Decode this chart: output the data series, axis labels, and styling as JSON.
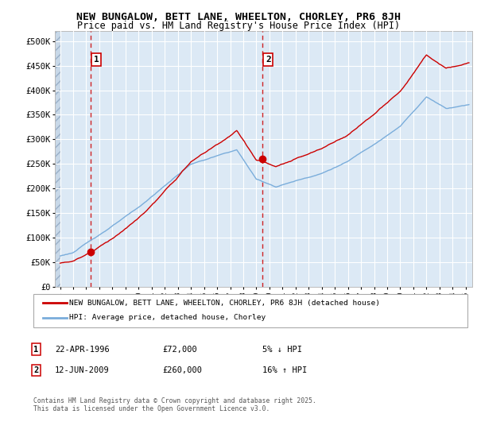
{
  "title": "NEW BUNGALOW, BETT LANE, WHEELTON, CHORLEY, PR6 8JH",
  "subtitle": "Price paid vs. HM Land Registry's House Price Index (HPI)",
  "legend_line1": "NEW BUNGALOW, BETT LANE, WHEELTON, CHORLEY, PR6 8JH (detached house)",
  "legend_line2": "HPI: Average price, detached house, Chorley",
  "ann1_date": "22-APR-1996",
  "ann1_price": "£72,000",
  "ann1_hpi": "5% ↓ HPI",
  "ann1_x": 1996.31,
  "ann1_y": 72000,
  "ann2_date": "12-JUN-2009",
  "ann2_price": "£260,000",
  "ann2_hpi": "16% ↑ HPI",
  "ann2_x": 2009.45,
  "ann2_y": 260000,
  "price_line_color": "#cc0000",
  "hpi_line_color": "#7aaddb",
  "dot_color": "#cc0000",
  "vline_color": "#cc0000",
  "bg_color": "#dce9f5",
  "grid_color": "#ffffff",
  "ylim": [
    0,
    520000
  ],
  "xlim_start": 1993.6,
  "xlim_end": 2025.5,
  "yticks": [
    0,
    50000,
    100000,
    150000,
    200000,
    250000,
    300000,
    350000,
    400000,
    450000,
    500000
  ],
  "xticks": [
    1994,
    1995,
    1996,
    1997,
    1998,
    1999,
    2000,
    2001,
    2002,
    2003,
    2004,
    2005,
    2006,
    2007,
    2008,
    2009,
    2010,
    2011,
    2012,
    2013,
    2014,
    2015,
    2016,
    2017,
    2018,
    2019,
    2020,
    2021,
    2022,
    2023,
    2024,
    2025
  ],
  "footer": "Contains HM Land Registry data © Crown copyright and database right 2025.\nThis data is licensed under the Open Government Licence v3.0."
}
